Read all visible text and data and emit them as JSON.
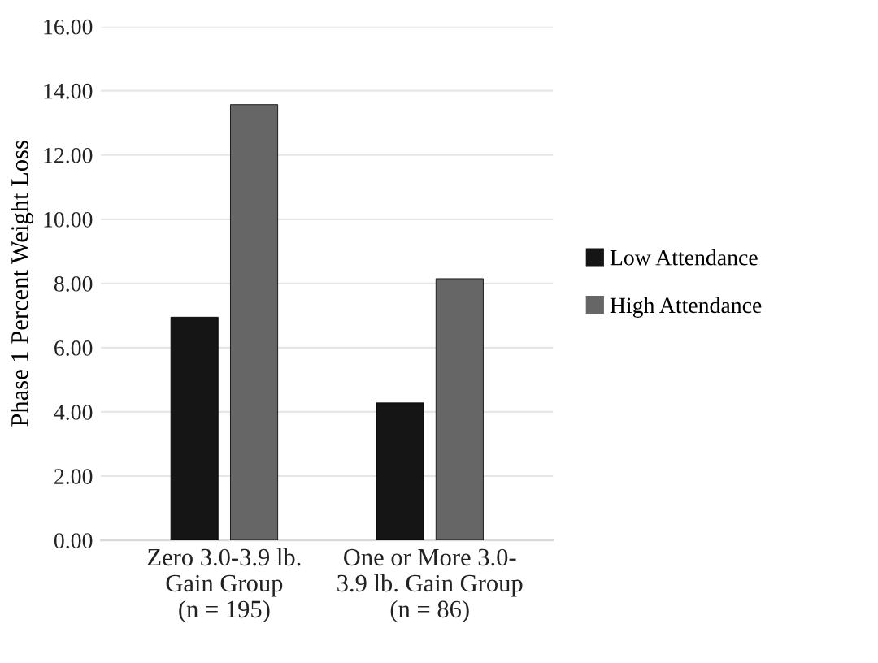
{
  "chart_data": {
    "type": "bar",
    "ylabel": "Phase 1 Percent Weight Loss",
    "categories": [
      "Zero 3.0-3.9 lb.\nGain Group\n(n = 195)",
      "One or More 3.0-\n3.9 lb. Gain Group\n(n = 86)"
    ],
    "series": [
      {
        "name": "Low Attendance",
        "color": "#151515",
        "values": [
          6.95,
          4.28
        ]
      },
      {
        "name": "High Attendance",
        "color": "#666666",
        "values": [
          13.57,
          8.15
        ]
      }
    ],
    "ylim": [
      0,
      16
    ],
    "yticks": [
      {
        "value": 0,
        "label": "0.00"
      },
      {
        "value": 2,
        "label": "2.00"
      },
      {
        "value": 4,
        "label": "4.00"
      },
      {
        "value": 6,
        "label": "6.00"
      },
      {
        "value": 8,
        "label": "8.00"
      },
      {
        "value": 10,
        "label": "10.00"
      },
      {
        "value": 12,
        "label": "12.00"
      },
      {
        "value": 14,
        "label": "14.00"
      },
      {
        "value": 16,
        "label": "16.00"
      }
    ],
    "grid": "y",
    "legend": "right"
  }
}
